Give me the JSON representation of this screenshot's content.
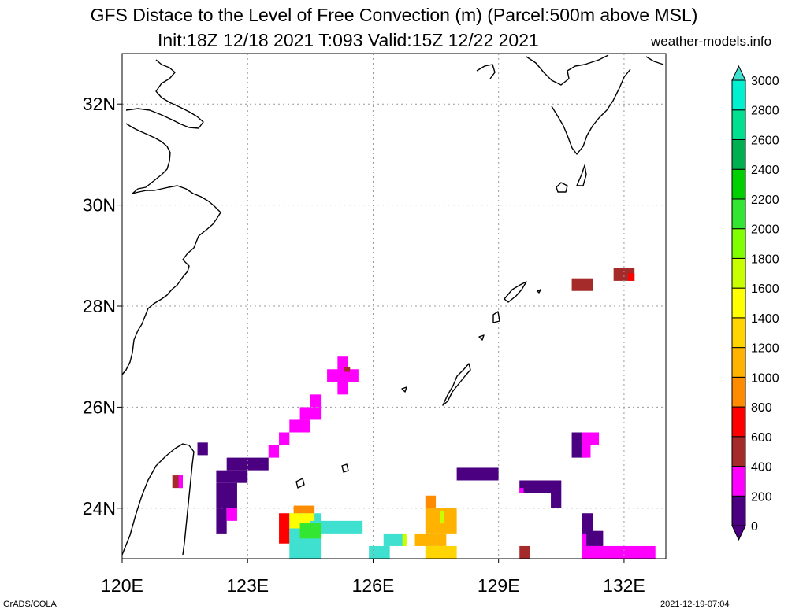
{
  "title_line1": "GFS Distace to the Level of Free Convection (m) (Parcel:500m above MSL)",
  "title_line2": "Init:18Z 12/18 2021 T:093 Valid:15Z 12/22 2021",
  "site": "weather-models.info",
  "footer_left": "GrADS/COLA",
  "footer_right": "2021-12-19-07:04",
  "map": {
    "lon_range": [
      120.0,
      133.0
    ],
    "lat_range": [
      23.0,
      33.0
    ],
    "lon_ticks": [
      {
        "v": 120,
        "label": "120E"
      },
      {
        "v": 123,
        "label": "123E"
      },
      {
        "v": 126,
        "label": "126E"
      },
      {
        "v": 129,
        "label": "129E"
      },
      {
        "v": 132,
        "label": "132E"
      }
    ],
    "lat_ticks": [
      {
        "v": 24,
        "label": "24N"
      },
      {
        "v": 26,
        "label": "26N"
      },
      {
        "v": 28,
        "label": "28N"
      },
      {
        "v": 30,
        "label": "30N"
      },
      {
        "v": 32,
        "label": "32N"
      }
    ],
    "grid": true
  },
  "colorbar": {
    "levels": [
      "0",
      "200",
      "400",
      "600",
      "800",
      "1000",
      "1200",
      "1400",
      "1600",
      "1800",
      "2000",
      "2200",
      "2400",
      "2600",
      "2800",
      "3000"
    ],
    "colors": [
      "#4b0082",
      "#ff00ff",
      "#a52a2a",
      "#ff0000",
      "#ff8c00",
      "#ffb300",
      "#ffd400",
      "#ffff00",
      "#c8ff00",
      "#7fff00",
      "#32e632",
      "#00d000",
      "#00b050",
      "#00e090",
      "#00f0d0",
      "#40e0d0"
    ],
    "extend": "both"
  },
  "field_cells": [
    {
      "lon": 121.8,
      "lat": 25.05,
      "w": 0.25,
      "h": 0.25,
      "c": "#4b0082"
    },
    {
      "lon": 121.2,
      "lat": 24.4,
      "w": 0.25,
      "h": 0.25,
      "c": "#a52a2a"
    },
    {
      "lon": 121.35,
      "lat": 24.4,
      "w": 0.1,
      "h": 0.25,
      "c": "#ff00ff"
    },
    {
      "lon": 122.5,
      "lat": 24.75,
      "w": 0.75,
      "h": 0.25,
      "c": "#4b0082"
    },
    {
      "lon": 122.25,
      "lat": 24.5,
      "w": 0.75,
      "h": 0.25,
      "c": "#4b0082"
    },
    {
      "lon": 122.25,
      "lat": 24.0,
      "w": 0.5,
      "h": 0.5,
      "c": "#4b0082"
    },
    {
      "lon": 122.25,
      "lat": 23.5,
      "w": 0.25,
      "h": 0.5,
      "c": "#4b0082"
    },
    {
      "lon": 122.5,
      "lat": 23.75,
      "w": 0.25,
      "h": 0.25,
      "c": "#ff00ff"
    },
    {
      "lon": 123.25,
      "lat": 24.75,
      "w": 0.25,
      "h": 0.25,
      "c": "#4b0082"
    },
    {
      "lon": 123.5,
      "lat": 25.0,
      "w": 0.25,
      "h": 0.25,
      "c": "#ff00ff"
    },
    {
      "lon": 123.75,
      "lat": 25.25,
      "w": 0.25,
      "h": 0.25,
      "c": "#ff00ff"
    },
    {
      "lon": 124.0,
      "lat": 25.5,
      "w": 0.5,
      "h": 0.25,
      "c": "#ff00ff"
    },
    {
      "lon": 124.25,
      "lat": 25.75,
      "w": 0.5,
      "h": 0.25,
      "c": "#ff00ff"
    },
    {
      "lon": 124.5,
      "lat": 26.0,
      "w": 0.25,
      "h": 0.25,
      "c": "#ff00ff"
    },
    {
      "lon": 124.9,
      "lat": 26.5,
      "w": 0.75,
      "h": 0.25,
      "c": "#ff00ff"
    },
    {
      "lon": 125.15,
      "lat": 26.25,
      "w": 0.25,
      "h": 0.75,
      "c": "#ff00ff"
    },
    {
      "lon": 125.3,
      "lat": 26.7,
      "w": 0.15,
      "h": 0.1,
      "c": "#a52a2a"
    },
    {
      "lon": 123.75,
      "lat": 23.3,
      "w": 0.25,
      "h": 0.6,
      "c": "#ff0000"
    },
    {
      "lon": 124.0,
      "lat": 23.0,
      "w": 0.75,
      "h": 0.9,
      "c": "#40e0d0"
    },
    {
      "lon": 124.0,
      "lat": 23.6,
      "w": 0.6,
      "h": 0.3,
      "c": "#ffff00"
    },
    {
      "lon": 124.1,
      "lat": 23.9,
      "w": 0.5,
      "h": 0.15,
      "c": "#ff8c00"
    },
    {
      "lon": 124.5,
      "lat": 23.5,
      "w": 1.25,
      "h": 0.25,
      "c": "#40e0d0"
    },
    {
      "lon": 124.25,
      "lat": 23.4,
      "w": 0.5,
      "h": 0.3,
      "c": "#32e632"
    },
    {
      "lon": 125.9,
      "lat": 23.0,
      "w": 0.5,
      "h": 0.25,
      "c": "#40e0d0"
    },
    {
      "lon": 126.25,
      "lat": 23.25,
      "w": 0.5,
      "h": 0.25,
      "c": "#40e0d0"
    },
    {
      "lon": 126.7,
      "lat": 23.25,
      "w": 0.1,
      "h": 0.25,
      "c": "#c8ff00"
    },
    {
      "lon": 127.25,
      "lat": 23.5,
      "w": 0.75,
      "h": 0.5,
      "c": "#ffb300"
    },
    {
      "lon": 127.0,
      "lat": 23.25,
      "w": 0.75,
      "h": 0.25,
      "c": "#ffb300"
    },
    {
      "lon": 127.25,
      "lat": 23.0,
      "w": 0.75,
      "h": 0.25,
      "c": "#ffd400"
    },
    {
      "lon": 127.25,
      "lat": 24.0,
      "w": 0.25,
      "h": 0.25,
      "c": "#ff8c00"
    },
    {
      "lon": 127.6,
      "lat": 23.7,
      "w": 0.1,
      "h": 0.25,
      "c": "#c8ff00"
    },
    {
      "lon": 128.0,
      "lat": 24.55,
      "w": 1.0,
      "h": 0.25,
      "c": "#4b0082"
    },
    {
      "lon": 129.5,
      "lat": 24.3,
      "w": 1.0,
      "h": 0.25,
      "c": "#4b0082"
    },
    {
      "lon": 130.25,
      "lat": 24.0,
      "w": 0.25,
      "h": 0.3,
      "c": "#4b0082"
    },
    {
      "lon": 129.5,
      "lat": 24.3,
      "w": 0.1,
      "h": 0.1,
      "c": "#ff00ff"
    },
    {
      "lon": 130.75,
      "lat": 25.0,
      "w": 0.35,
      "h": 0.5,
      "c": "#4b0082"
    },
    {
      "lon": 131.0,
      "lat": 25.25,
      "w": 0.4,
      "h": 0.25,
      "c": "#ff00ff"
    },
    {
      "lon": 131.0,
      "lat": 25.0,
      "w": 0.2,
      "h": 0.25,
      "c": "#ff00ff"
    },
    {
      "lon": 130.75,
      "lat": 28.3,
      "w": 0.5,
      "h": 0.25,
      "c": "#a52a2a"
    },
    {
      "lon": 131.75,
      "lat": 28.5,
      "w": 0.5,
      "h": 0.25,
      "c": "#a52a2a"
    },
    {
      "lon": 132.1,
      "lat": 28.5,
      "w": 0.15,
      "h": 0.15,
      "c": "#ff0000"
    },
    {
      "lon": 129.5,
      "lat": 23.0,
      "w": 0.25,
      "h": 0.25,
      "c": "#a52a2a"
    },
    {
      "lon": 131.0,
      "lat": 23.5,
      "w": 0.25,
      "h": 0.4,
      "c": "#4b0082"
    },
    {
      "lon": 131.0,
      "lat": 23.25,
      "w": 0.5,
      "h": 0.3,
      "c": "#4b0082"
    },
    {
      "lon": 131.25,
      "lat": 23.0,
      "w": 1.5,
      "h": 0.25,
      "c": "#ff00ff"
    },
    {
      "lon": 131.0,
      "lat": 23.0,
      "w": 0.25,
      "h": 0.25,
      "c": "#ff00ff"
    },
    {
      "lon": 131.0,
      "lat": 23.25,
      "w": 0.1,
      "h": 0.25,
      "c": "#ff00ff"
    }
  ]
}
